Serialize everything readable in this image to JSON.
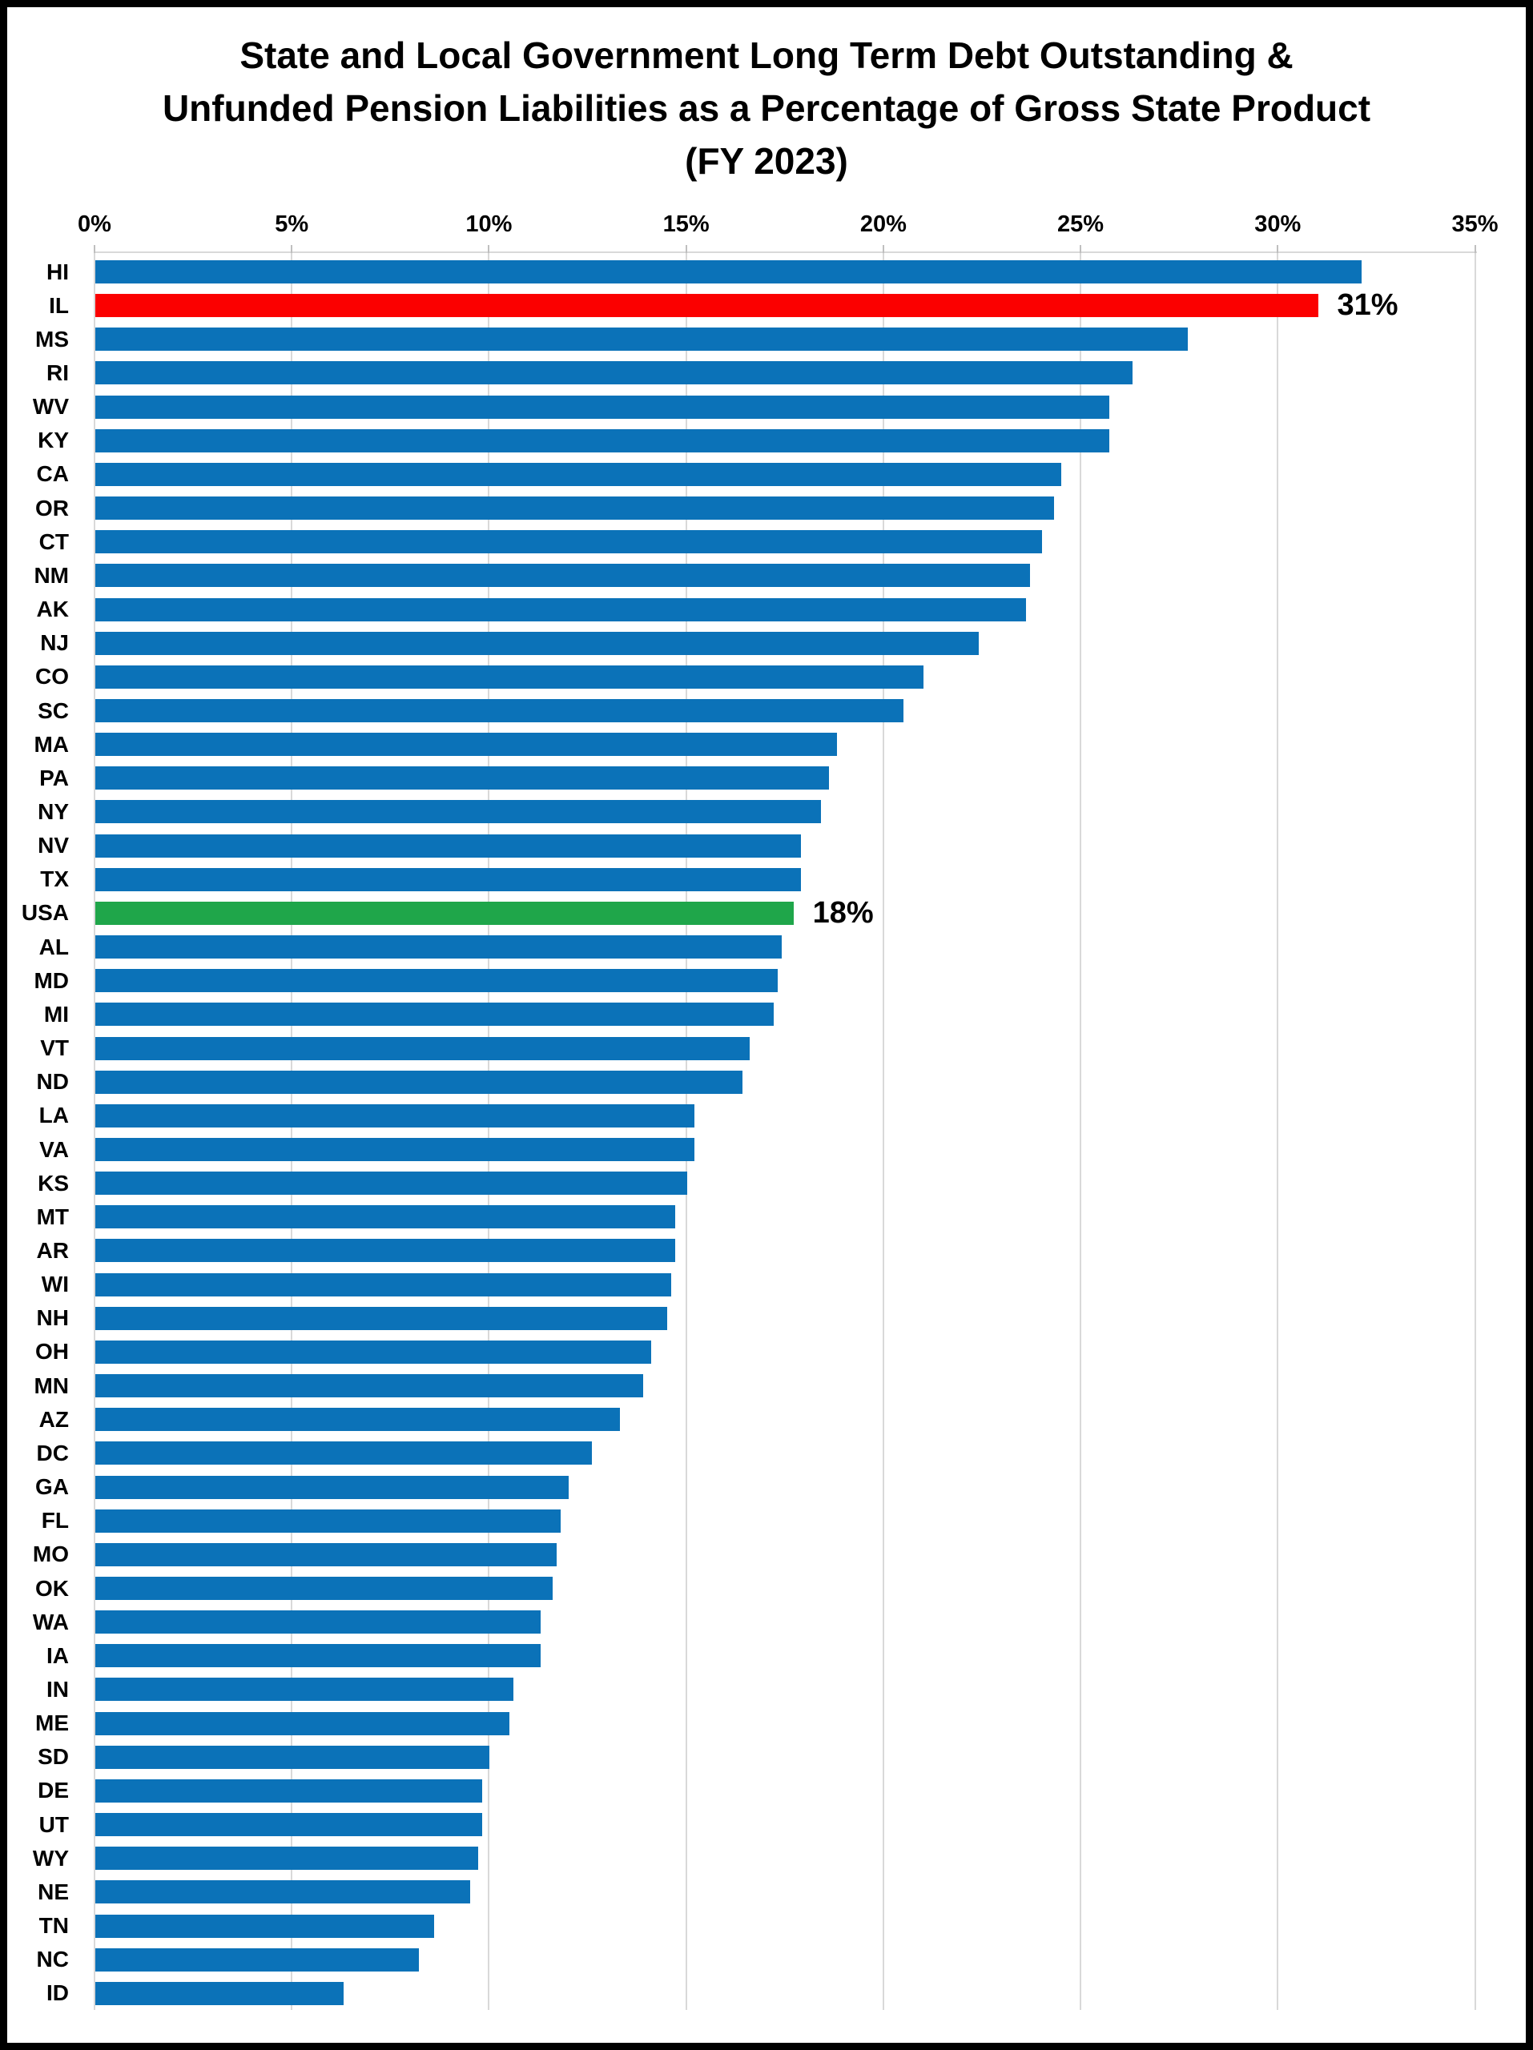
{
  "title": {
    "lines": [
      "State and Local Government Long Term Debt Outstanding &",
      "Unfunded Pension Liabilities as a Percentage of Gross State Product",
      "(FY 2023)"
    ]
  },
  "colors": {
    "bar_default": "#0b72b8",
    "bar_highlight_red": "#fb0000",
    "bar_highlight_green": "#1fa64a",
    "gridline": "#d9d9d9",
    "text": "#000000",
    "background": "#ffffff",
    "frame_border": "#000000"
  },
  "chart_data": {
    "type": "bar",
    "orientation": "horizontal",
    "title": "State and Local Government Long Term Debt Outstanding & Unfunded Pension Liabilities as a Percentage of Gross State Product (FY 2023)",
    "xlabel": "",
    "ylabel": "",
    "xlim": [
      0,
      35
    ],
    "x_axis_position": "top",
    "grid": "vertical",
    "legend": "none",
    "x_ticks": [
      "0%",
      "5%",
      "10%",
      "15%",
      "20%",
      "25%",
      "30%",
      "35%"
    ],
    "x_tick_values": [
      0,
      5,
      10,
      15,
      20,
      25,
      30,
      35
    ],
    "categories": [
      "HI",
      "IL",
      "MS",
      "RI",
      "WV",
      "KY",
      "CA",
      "OR",
      "CT",
      "NM",
      "AK",
      "NJ",
      "CO",
      "SC",
      "MA",
      "PA",
      "NY",
      "NV",
      "TX",
      "USA",
      "AL",
      "MD",
      "MI",
      "VT",
      "ND",
      "LA",
      "VA",
      "KS",
      "MT",
      "AR",
      "WI",
      "NH",
      "OH",
      "MN",
      "AZ",
      "DC",
      "GA",
      "FL",
      "MO",
      "OK",
      "WA",
      "IA",
      "IN",
      "ME",
      "SD",
      "DE",
      "UT",
      "WY",
      "NE",
      "TN",
      "NC",
      "ID"
    ],
    "values": [
      32.1,
      31.0,
      27.7,
      26.3,
      25.7,
      25.7,
      24.5,
      24.3,
      24.0,
      23.7,
      23.6,
      22.4,
      21.0,
      20.5,
      18.8,
      18.6,
      18.4,
      17.9,
      17.9,
      17.7,
      17.4,
      17.3,
      17.2,
      16.6,
      16.4,
      15.2,
      15.2,
      15.0,
      14.7,
      14.7,
      14.6,
      14.5,
      14.1,
      13.9,
      13.3,
      12.6,
      12.0,
      11.8,
      11.7,
      11.6,
      11.3,
      11.3,
      10.6,
      10.5,
      10.0,
      9.8,
      9.8,
      9.7,
      9.5,
      8.6,
      8.2,
      6.3
    ],
    "highlights": [
      {
        "category": "IL",
        "color": "#fb0000",
        "data_label": "31%"
      },
      {
        "category": "USA",
        "color": "#1fa64a",
        "data_label": "18%"
      }
    ],
    "bar_color_default": "#0b72b8"
  }
}
